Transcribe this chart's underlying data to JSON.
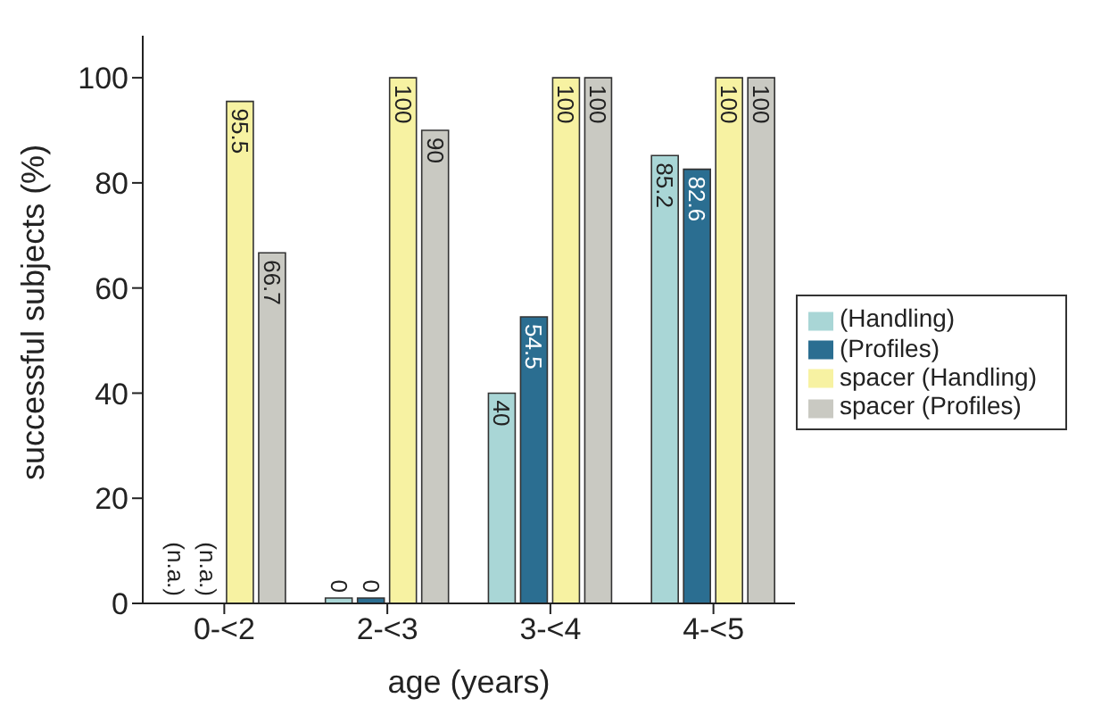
{
  "chart_data": {
    "type": "bar",
    "xlabel": "age (years)",
    "ylabel": "successful subjects (%)",
    "categories": [
      "0-<2",
      "2-<3",
      "3-<4",
      "4-<5"
    ],
    "series": [
      {
        "name": "(Handling)",
        "color": "#a9d6d6",
        "values": [
          null,
          0,
          40,
          85.2
        ],
        "value_labels": [
          "(n.a.)",
          "0",
          "40",
          "85.2"
        ]
      },
      {
        "name": "(Profiles)",
        "color": "#2b6e91",
        "values": [
          null,
          0,
          54.5,
          82.6
        ],
        "value_labels": [
          "(n.a.)",
          "0",
          "54.5",
          "82.6"
        ]
      },
      {
        "name": "spacer (Handling)",
        "color": "#f7f2a2",
        "values": [
          95.5,
          100,
          100,
          100
        ],
        "value_labels": [
          "95.5",
          "100",
          "100",
          "100"
        ]
      },
      {
        "name": "spacer (Profiles)",
        "color": "#c9c9c2",
        "values": [
          66.7,
          90,
          100,
          100
        ],
        "value_labels": [
          "66.7",
          "90",
          "100",
          "100"
        ]
      }
    ],
    "ylim": [
      0,
      108
    ],
    "yticks": [
      0,
      20,
      40,
      60,
      80,
      100
    ],
    "legend": "right"
  }
}
